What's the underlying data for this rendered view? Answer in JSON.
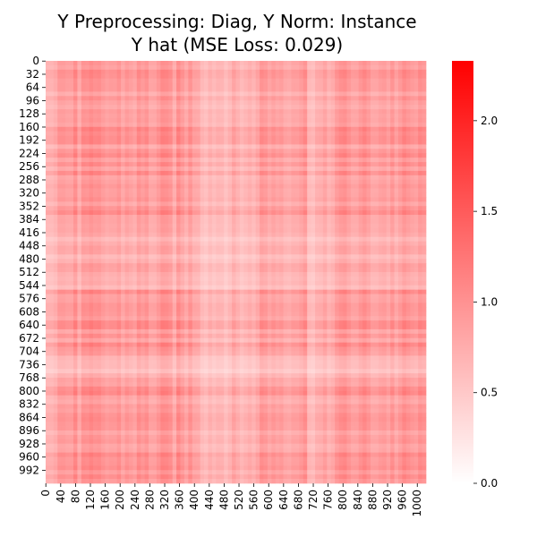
{
  "chart_data": {
    "type": "heatmap",
    "title_line1": "Y Preprocessing: Diag, Y Norm: Instance",
    "title_line2": "Y hat (MSE Loss: 0.029)",
    "xlabel": "",
    "ylabel": "",
    "rows": 1024,
    "cols": 1024,
    "x_tick_labels": [
      "0",
      "40",
      "80",
      "120",
      "160",
      "200",
      "240",
      "280",
      "320",
      "360",
      "400",
      "440",
      "480",
      "520",
      "560",
      "600",
      "640",
      "680",
      "720",
      "760",
      "800",
      "840",
      "880",
      "920",
      "960",
      "1000"
    ],
    "y_tick_labels": [
      "0",
      "32",
      "64",
      "96",
      "128",
      "160",
      "192",
      "224",
      "256",
      "288",
      "320",
      "352",
      "384",
      "416",
      "448",
      "480",
      "512",
      "544",
      "576",
      "608",
      "640",
      "672",
      "704",
      "736",
      "768",
      "800",
      "832",
      "864",
      "896",
      "928",
      "960",
      "992"
    ],
    "colorbar": {
      "range": [
        0.0,
        2.33
      ],
      "tick_labels": [
        "0.0",
        "0.5",
        "1.0",
        "1.5",
        "2.0"
      ],
      "colors": [
        "#ffffff",
        "#ff0000"
      ]
    },
    "value_range_observed": [
      0.25,
      1.25
    ],
    "pattern": "outer-product-like heatmap: each row and column has its own intensity profile; pale low-value band near rows 416-544 and rows 720-768, pale columns near 440-560 and 720-760; strongest cells around rows 224 and 640 crossed with columns 200-260 and 600-640"
  }
}
